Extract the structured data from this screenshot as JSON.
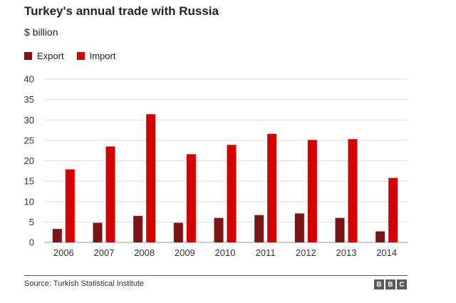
{
  "chart_data": {
    "type": "bar",
    "title": "Turkey's annual trade with Russia",
    "subtitle": "$ billion",
    "categories": [
      "2006",
      "2007",
      "2008",
      "2009",
      "2010",
      "2011",
      "2012",
      "2013",
      "2014"
    ],
    "series": [
      {
        "name": "Export",
        "color": "#7b1515",
        "values": [
          3.3,
          4.8,
          6.5,
          4.8,
          6.0,
          6.7,
          7.1,
          6.0,
          2.7
        ]
      },
      {
        "name": "Import",
        "color": "#d40000",
        "values": [
          17.9,
          23.5,
          31.4,
          21.6,
          23.9,
          26.6,
          25.1,
          25.3,
          15.8
        ]
      }
    ],
    "ylim": [
      0,
      40
    ],
    "yticks": [
      0,
      5,
      10,
      15,
      20,
      25,
      30,
      35,
      40
    ],
    "grid": true,
    "legend": "top-left"
  },
  "footer": {
    "source": "Source: Turkish Statistical Institute",
    "logo_letters": [
      "B",
      "B",
      "C"
    ]
  }
}
